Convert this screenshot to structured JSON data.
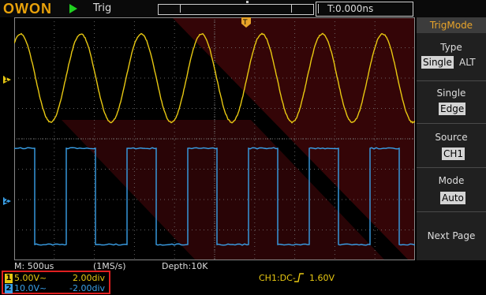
{
  "app": {
    "logo": "OWON",
    "run_state": "run",
    "trigger_status": "Trig"
  },
  "time_offset": "T:0.000ns",
  "menu": {
    "title": "TrigMode",
    "type": {
      "label": "Type",
      "options": [
        "Single",
        "ALT"
      ],
      "selected": "Single"
    },
    "single": {
      "label": "Single",
      "value": "Edge"
    },
    "source": {
      "label": "Source",
      "value": "CH1"
    },
    "mode": {
      "label": "Mode",
      "value": "Auto"
    },
    "next_page": "Next Page"
  },
  "status": {
    "timebase": "M: 500us",
    "sample_rate": "(1MS/s)",
    "depth": "Depth:10K",
    "trigger_info": "CH1:DC-",
    "trigger_level": "1.60V"
  },
  "channels": [
    {
      "num": "1",
      "volts": "5.00V~",
      "probe": "2.00div",
      "color": "#e8c812"
    },
    {
      "num": "2",
      "volts": "10.0V~",
      "probe": "-2.00div",
      "color": "#3aa0e8"
    }
  ],
  "markers": {
    "ch1": "1",
    "ch2": "2",
    "trigger_pos": "T"
  },
  "colors": {
    "ch1": "#e8c812",
    "ch2": "#3aa0e8",
    "accent": "#e8a42a",
    "highlight": "#e02020"
  }
}
